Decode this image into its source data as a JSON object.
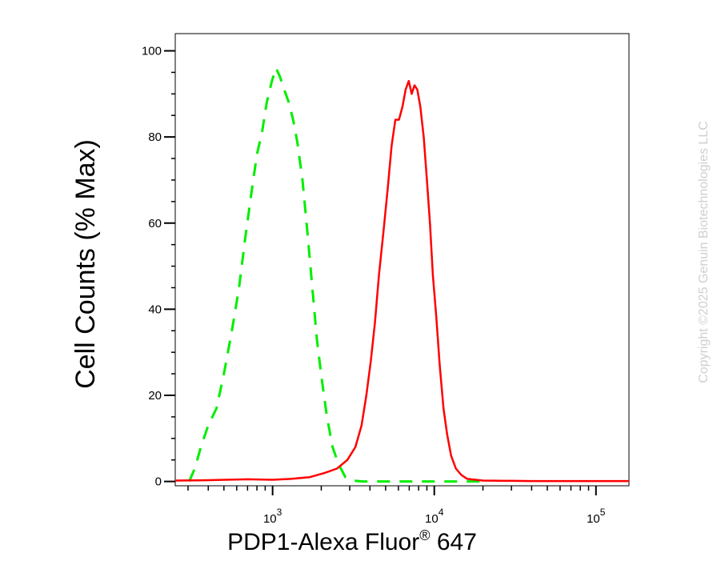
{
  "chart_data": {
    "type": "line",
    "title": "",
    "xlabel_main": "PDP1-Alexa Fluor",
    "xlabel_sup": "®",
    "xlabel_tail": " 647",
    "ylabel": "Cell Counts (% Max)",
    "x_scale": "log",
    "xlim": [
      250,
      160000
    ],
    "ylim": [
      -1,
      104
    ],
    "yticks": [
      {
        "value": 0,
        "label": "0"
      },
      {
        "value": 20,
        "label": "20"
      },
      {
        "value": 40,
        "label": "40"
      },
      {
        "value": 60,
        "label": "60"
      },
      {
        "value": 80,
        "label": "80"
      },
      {
        "value": 100,
        "label": "100"
      }
    ],
    "xticks": [
      {
        "value": 1000,
        "base": "10",
        "exp": "3"
      },
      {
        "value": 10000,
        "base": "10",
        "exp": "4"
      },
      {
        "value": 100000,
        "base": "10",
        "exp": "5"
      }
    ],
    "grid": false,
    "legend": "none",
    "series": [
      {
        "style": "dashed",
        "color": "#00ee00",
        "points": [
          [
            305,
            0
          ],
          [
            330,
            3
          ],
          [
            360,
            8
          ],
          [
            400,
            13
          ],
          [
            450,
            17
          ],
          [
            500,
            25
          ],
          [
            560,
            35
          ],
          [
            620,
            45
          ],
          [
            680,
            57
          ],
          [
            740,
            67
          ],
          [
            800,
            76
          ],
          [
            860,
            81
          ],
          [
            920,
            88
          ],
          [
            990,
            93
          ],
          [
            1050,
            96
          ],
          [
            1110,
            94
          ],
          [
            1180,
            91
          ],
          [
            1260,
            88
          ],
          [
            1340,
            84
          ],
          [
            1420,
            79
          ],
          [
            1530,
            70
          ],
          [
            1640,
            58
          ],
          [
            1760,
            45
          ],
          [
            1880,
            33
          ],
          [
            2010,
            24
          ],
          [
            2170,
            15
          ],
          [
            2350,
            8
          ],
          [
            2560,
            4
          ],
          [
            2820,
            1
          ],
          [
            3100,
            0.2
          ],
          [
            3600,
            0
          ],
          [
            20000,
            0
          ]
        ]
      },
      {
        "style": "solid",
        "color": "#ff0000",
        "points": [
          [
            250,
            0.2
          ],
          [
            400,
            0.3
          ],
          [
            700,
            0.5
          ],
          [
            1000,
            0.4
          ],
          [
            1300,
            0.6
          ],
          [
            1700,
            1
          ],
          [
            2100,
            2
          ],
          [
            2500,
            3
          ],
          [
            2900,
            5
          ],
          [
            3250,
            8
          ],
          [
            3550,
            13
          ],
          [
            3800,
            20
          ],
          [
            4050,
            28
          ],
          [
            4300,
            37
          ],
          [
            4550,
            48
          ],
          [
            4850,
            58
          ],
          [
            5150,
            68
          ],
          [
            5450,
            78
          ],
          [
            5750,
            84
          ],
          [
            6050,
            84
          ],
          [
            6350,
            87
          ],
          [
            6650,
            91
          ],
          [
            6950,
            93
          ],
          [
            7250,
            90
          ],
          [
            7550,
            92
          ],
          [
            7850,
            91
          ],
          [
            8200,
            87
          ],
          [
            8600,
            80
          ],
          [
            9000,
            70
          ],
          [
            9400,
            60
          ],
          [
            9800,
            48
          ],
          [
            10300,
            38
          ],
          [
            10800,
            27
          ],
          [
            11400,
            17
          ],
          [
            12000,
            11
          ],
          [
            12700,
            6
          ],
          [
            13600,
            3
          ],
          [
            14700,
            1.5
          ],
          [
            16000,
            0.6
          ],
          [
            20000,
            0.2
          ],
          [
            40000,
            0.1
          ],
          [
            160000,
            0.1
          ]
        ]
      }
    ]
  },
  "watermark": "Copyright ©2025 Genuin Biotechnologies LLC"
}
